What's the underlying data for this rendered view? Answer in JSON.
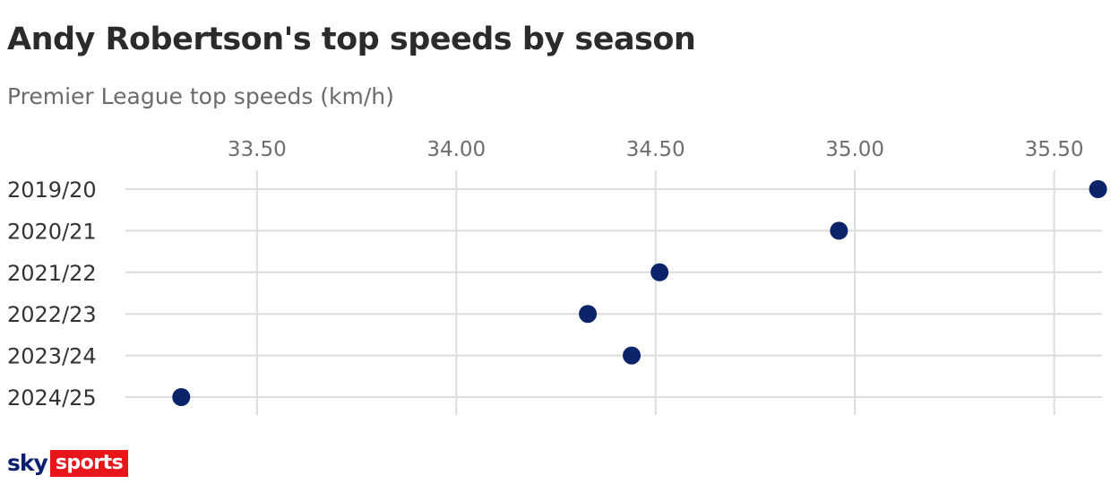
{
  "title": "Andy Robertson's top speeds by season",
  "subtitle": "Premier League top speeds (km/h)",
  "logo": {
    "sky": "sky",
    "sports": "sports"
  },
  "colors": {
    "point": "#0b2469",
    "grid": "#dcdcdc",
    "logo_red": "#e8161b",
    "logo_navy": "#0a1f6e"
  },
  "chart_data": {
    "type": "scatter",
    "title": "Andy Robertson's top speeds by season",
    "subtitle": "Premier League top speeds (km/h)",
    "xlabel": "",
    "ylabel": "",
    "xlim": [
      33.17,
      35.62
    ],
    "x_ticks": [
      "33.50",
      "34.00",
      "34.50",
      "35.00",
      "35.50"
    ],
    "x_tick_values": [
      33.5,
      34.0,
      34.5,
      35.0,
      35.5
    ],
    "categories": [
      "2019/20",
      "2020/21",
      "2021/22",
      "2022/23",
      "2023/24",
      "2024/25"
    ],
    "values": [
      35.61,
      34.96,
      34.51,
      34.33,
      34.44,
      33.31
    ],
    "grid": true,
    "legend": "none"
  }
}
